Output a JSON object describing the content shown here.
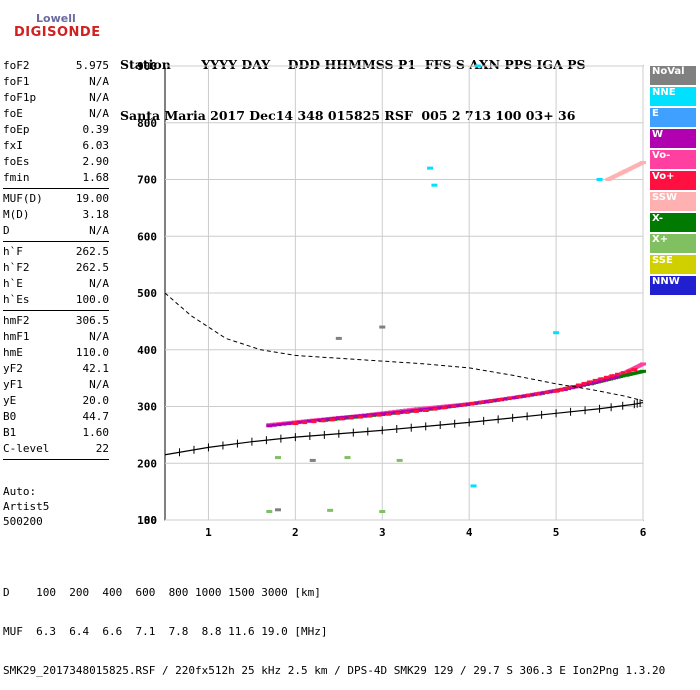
{
  "logo": {
    "line1": "Lowell",
    "line2": "DIGISONDE"
  },
  "header": {
    "labels": "Station       YYYY DAY    DDD HHMMSS P1  FFS S AXN PPS IGA PS",
    "values": "Santa Maria 2017 Dec14 348 015825 RSF  005 2 713 100 03+ 36"
  },
  "params": [
    {
      "k": "foF2",
      "v": "5.975"
    },
    {
      "k": "foF1",
      "v": "N/A"
    },
    {
      "k": "foF1p",
      "v": "N/A"
    },
    {
      "k": "foE",
      "v": "N/A"
    },
    {
      "k": "foEp",
      "v": "0.39"
    },
    {
      "k": "fxI",
      "v": "6.03"
    },
    {
      "k": "foEs",
      "v": "2.90"
    },
    {
      "k": "fmin",
      "v": "1.68"
    },
    {
      "k": "MUF(D)",
      "v": "19.00"
    },
    {
      "k": "M(D)",
      "v": "3.18"
    },
    {
      "k": "D",
      "v": "N/A"
    },
    {
      "k": "h`F",
      "v": "262.5"
    },
    {
      "k": "h`F2",
      "v": "262.5"
    },
    {
      "k": "h`E",
      "v": "N/A"
    },
    {
      "k": "h`Es",
      "v": "100.0"
    },
    {
      "k": "hmF2",
      "v": "306.5"
    },
    {
      "k": "hmF1",
      "v": "N/A"
    },
    {
      "k": "hmE",
      "v": "110.0"
    },
    {
      "k": "yF2",
      "v": "42.1"
    },
    {
      "k": "yF1",
      "v": "N/A"
    },
    {
      "k": "yE",
      "v": "20.0"
    },
    {
      "k": "B0",
      "v": "44.7"
    },
    {
      "k": "B1",
      "v": "1.60"
    },
    {
      "k": "C-level",
      "v": "22"
    }
  ],
  "auto": {
    "line1": "Auto:",
    "line2": "Artist5",
    "line3": "500200"
  },
  "bottom": {
    "d_row": "D    100  200  400  600  800 1000 1500 3000 [km]",
    "muf_row": "MUF  6.3  6.4  6.6  7.1  7.8  8.8 11.6 19.0 [MHz]",
    "footer": "SMK29_2017348015825.RSF / 220fx512h 25 kHz 2.5 km / DPS-4D SMK29 129 / 29.7 S 306.3 E Ion2Png 1.3.20"
  },
  "legend": [
    {
      "label": "NoVal",
      "color": "#808080"
    },
    {
      "label": "NNE",
      "color": "#00e0ff"
    },
    {
      "label": "E",
      "color": "#40a0ff"
    },
    {
      "label": "W",
      "color": "#b000b0"
    },
    {
      "label": "Vo-",
      "color": "#ff40a0"
    },
    {
      "label": "Vo+",
      "color": "#ff1040"
    },
    {
      "label": "SSW",
      "color": "#ffb0b0"
    },
    {
      "label": "X-",
      "color": "#007a00"
    },
    {
      "label": "X+",
      "color": "#80c060"
    },
    {
      "label": "SSE",
      "color": "#d0d000"
    },
    {
      "label": "NNW",
      "color": "#2020d0"
    }
  ],
  "chart_data": {
    "type": "scatter",
    "xlim": [
      0.5,
      6.0
    ],
    "ylim": [
      80,
      900
    ],
    "x_ticks": [
      1,
      2,
      3,
      4,
      5,
      6
    ],
    "y_ticks": [
      80,
      100,
      200,
      300,
      400,
      500,
      600,
      700,
      800,
      900
    ],
    "grid": true,
    "series": [
      {
        "name": "Vo-",
        "color": "#ff40a0",
        "points": [
          [
            1.7,
            268
          ],
          [
            2.2,
            276
          ],
          [
            2.8,
            285
          ],
          [
            3.4,
            296
          ],
          [
            4.0,
            305
          ],
          [
            4.6,
            318
          ],
          [
            5.2,
            334
          ],
          [
            5.8,
            360
          ],
          [
            6.0,
            375
          ]
        ]
      },
      {
        "name": "X-",
        "color": "#007a00",
        "points": [
          [
            2.3,
            275
          ],
          [
            3.0,
            286
          ],
          [
            3.6,
            296
          ],
          [
            4.2,
            308
          ],
          [
            4.8,
            322
          ],
          [
            5.4,
            340
          ],
          [
            5.8,
            355
          ],
          [
            6.0,
            362
          ]
        ]
      },
      {
        "name": "W",
        "color": "#b000b0",
        "points": [
          [
            1.7,
            266
          ],
          [
            2.5,
            280
          ],
          [
            3.2,
            290
          ],
          [
            3.9,
            302
          ],
          [
            4.5,
            315
          ],
          [
            5.1,
            330
          ],
          [
            5.7,
            352
          ]
        ]
      },
      {
        "name": "Vo+",
        "color": "#ff1040",
        "points": [
          [
            2.0,
            270
          ],
          [
            3.5,
            293
          ],
          [
            5.0,
            327
          ],
          [
            5.9,
            365
          ]
        ]
      },
      {
        "name": "SSW",
        "color": "#ffb0b0",
        "points": [
          [
            5.6,
            700
          ],
          [
            5.8,
            715
          ],
          [
            6.0,
            730
          ]
        ]
      },
      {
        "name": "NNE",
        "color": "#00e0ff",
        "points": [
          [
            3.55,
            720
          ],
          [
            3.6,
            690
          ],
          [
            4.05,
            160
          ],
          [
            4.1,
            900
          ],
          [
            5.0,
            430
          ],
          [
            5.5,
            700
          ]
        ]
      },
      {
        "name": "X+",
        "color": "#80c060",
        "points": [
          [
            1.7,
            115
          ],
          [
            2.4,
            117
          ],
          [
            3.0,
            115
          ],
          [
            1.8,
            210
          ],
          [
            2.6,
            210
          ],
          [
            3.2,
            205
          ]
        ]
      },
      {
        "name": "NoVal",
        "color": "#808080",
        "points": [
          [
            1.8,
            118
          ],
          [
            2.2,
            205
          ],
          [
            2.5,
            420
          ],
          [
            3.0,
            440
          ]
        ]
      }
    ],
    "profile_curve": [
      [
        0.5,
        500
      ],
      [
        0.8,
        460
      ],
      [
        1.2,
        420
      ],
      [
        1.6,
        400
      ],
      [
        2.0,
        390
      ],
      [
        2.5,
        385
      ],
      [
        3.0,
        380
      ],
      [
        3.5,
        375
      ],
      [
        4.0,
        368
      ],
      [
        4.5,
        355
      ],
      [
        5.0,
        340
      ],
      [
        5.4,
        330
      ],
      [
        5.8,
        318
      ],
      [
        6.0,
        310
      ]
    ],
    "profile_fit": [
      [
        0.5,
        215
      ],
      [
        1.0,
        228
      ],
      [
        1.5,
        238
      ],
      [
        2.0,
        246
      ],
      [
        2.5,
        252
      ],
      [
        3.0,
        258
      ],
      [
        3.5,
        265
      ],
      [
        4.0,
        272
      ],
      [
        4.5,
        280
      ],
      [
        5.0,
        288
      ],
      [
        5.5,
        296
      ],
      [
        5.9,
        304
      ],
      [
        6.0,
        307
      ]
    ]
  }
}
